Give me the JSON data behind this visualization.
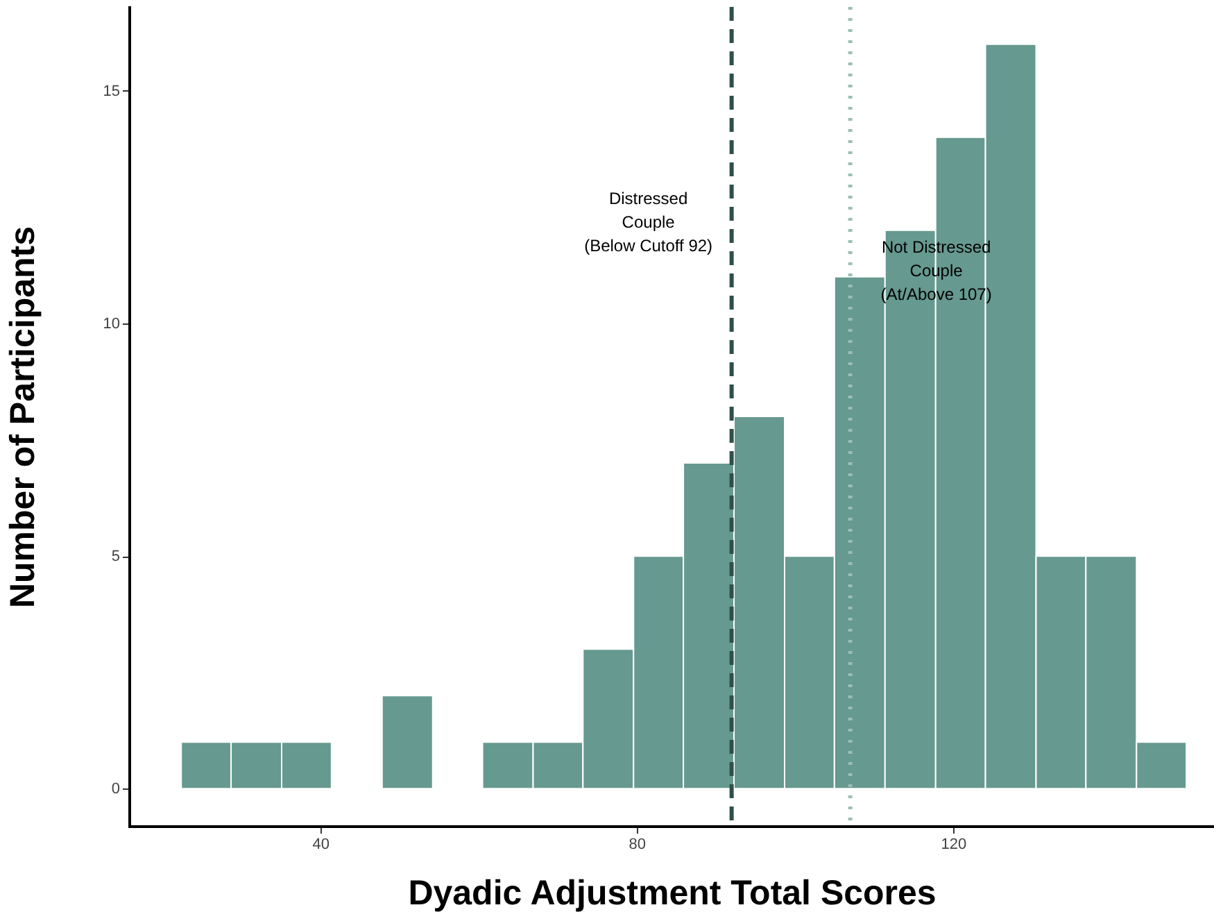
{
  "chart_data": {
    "type": "histogram",
    "xlabel": "Dyadic Adjustment Total Scores",
    "ylabel": "Number of Participants",
    "bins": [
      22.4,
      28.7,
      35.1,
      41.4,
      47.8,
      54.2,
      60.5,
      66.9,
      73.2,
      79.6,
      85.9,
      92.3,
      98.7,
      105.0,
      111.4,
      117.8,
      124.1,
      130.5,
      136.8,
      143.2,
      149.5
    ],
    "values": [
      1,
      1,
      1,
      0,
      2,
      0,
      1,
      1,
      3,
      5,
      7,
      8,
      5,
      11,
      12,
      14,
      16,
      5,
      5,
      1
    ],
    "color": "#66998f",
    "xlim": [
      15.8,
      153
    ],
    "xticks": [
      40,
      80,
      120
    ],
    "ylim": [
      -0.8,
      16.8
    ],
    "yticks": [
      0,
      5,
      10,
      15
    ],
    "grid": false,
    "ref_lines": [
      {
        "axis": "x",
        "value": 92,
        "color": "#2f4f4a",
        "line_style": "dashed",
        "label": "Distressed\nCouple\n(Below Cutoff 92)"
      },
      {
        "axis": "x",
        "value": 107,
        "color": "#9dbdb8",
        "line_style": "dotted",
        "label": "Not Distressed\nCouple\n(At/Above 107)"
      }
    ]
  }
}
